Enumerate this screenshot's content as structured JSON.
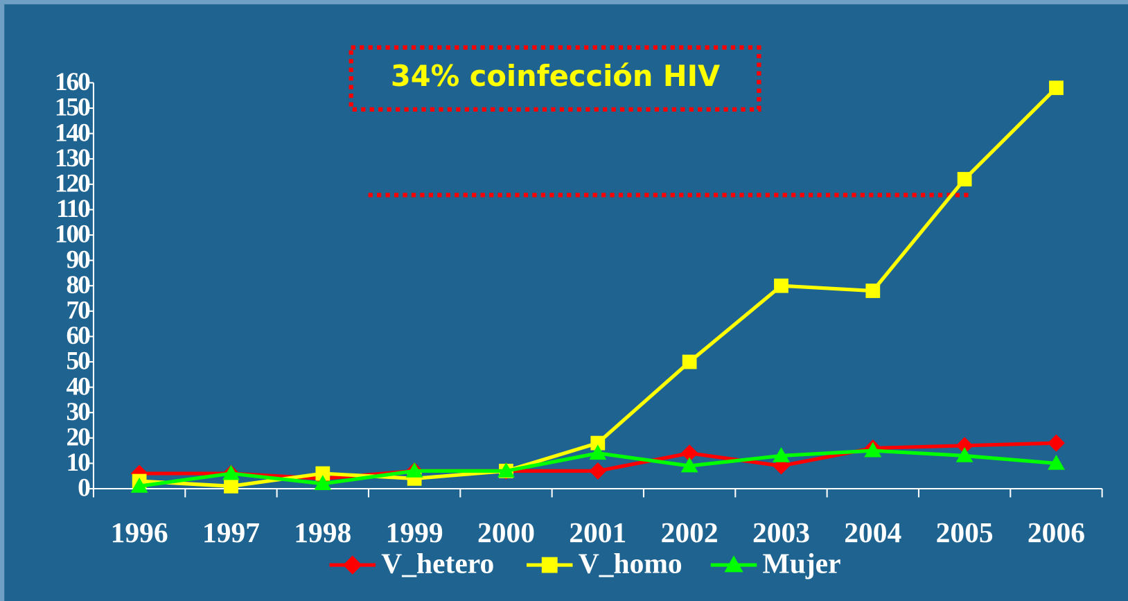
{
  "chart_data": {
    "type": "line",
    "annotation": "34% coinfección HIV",
    "categories": [
      "1996",
      "1997",
      "1998",
      "1999",
      "2000",
      "2001",
      "2002",
      "2003",
      "2004",
      "2005",
      "2006"
    ],
    "series": [
      {
        "name": "V_hetero",
        "color": "#ff0000",
        "marker": "diamond",
        "values": [
          6,
          6,
          4,
          7,
          7,
          7,
          14,
          9,
          16,
          17,
          18
        ]
      },
      {
        "name": "V_homo",
        "color": "#ffff00",
        "marker": "square",
        "values": [
          3,
          1,
          6,
          4,
          7,
          18,
          50,
          80,
          78,
          122,
          158
        ]
      },
      {
        "name": "Mujer",
        "color": "#00ff00",
        "marker": "triangle",
        "values": [
          1,
          6,
          2,
          7,
          7,
          14,
          9,
          13,
          15,
          13,
          10
        ]
      }
    ],
    "ylim": [
      0,
      160
    ],
    "yticks": [
      0,
      10,
      20,
      30,
      40,
      50,
      60,
      70,
      80,
      90,
      100,
      110,
      120,
      130,
      140,
      150,
      160
    ],
    "legend": "bottom"
  }
}
